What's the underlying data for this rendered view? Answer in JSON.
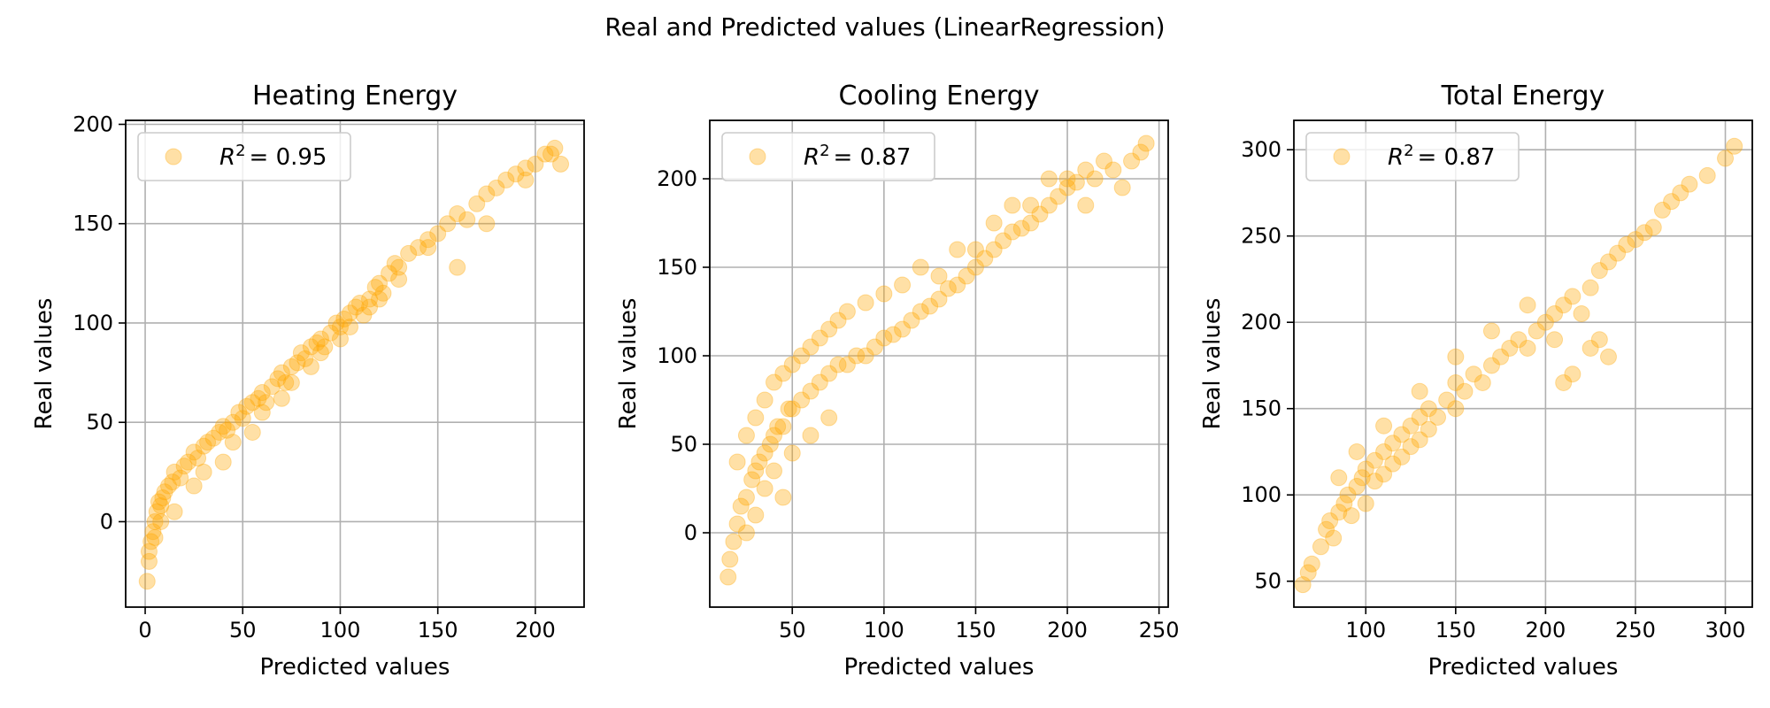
{
  "figure": {
    "suptitle": "Real and Predicted values (LinearRegression)"
  },
  "colors": {
    "point": "#ffa500",
    "grid": "#b0b0b0",
    "axis": "#000000"
  },
  "chart_data": [
    {
      "type": "scatter",
      "title": "Heating Energy",
      "xlabel": "Predicted values",
      "ylabel": "Real values",
      "xlim": [
        -10,
        225
      ],
      "ylim": [
        -43,
        202
      ],
      "xticks": [
        0,
        50,
        100,
        150,
        200
      ],
      "yticks": [
        0,
        50,
        100,
        150,
        200
      ],
      "grid": true,
      "legend": {
        "placement": "top-left",
        "label_prefix": "R",
        "label_sup": "2",
        "label_rest": "=  0.95"
      },
      "series": [
        {
          "values_x": [
            1,
            2,
            3,
            4,
            5,
            6,
            7,
            8,
            9,
            10,
            12,
            14,
            15,
            18,
            20,
            22,
            25,
            27,
            30,
            32,
            35,
            38,
            40,
            42,
            45,
            48,
            50,
            52,
            55,
            58,
            60,
            62,
            65,
            68,
            70,
            72,
            75,
            78,
            80,
            82,
            85,
            88,
            90,
            92,
            95,
            98,
            100,
            102,
            105,
            108,
            110,
            112,
            115,
            118,
            120,
            122,
            125,
            128,
            130,
            135,
            140,
            145,
            150,
            155,
            160,
            165,
            170,
            175,
            180,
            185,
            190,
            195,
            200,
            205,
            210,
            213,
            15,
            25,
            40,
            55,
            70,
            85,
            100,
            115,
            130,
            145,
            30,
            45,
            60,
            75,
            90,
            105,
            120,
            2,
            5,
            8,
            160,
            175,
            195,
            208
          ],
          "values_y": [
            -30,
            -20,
            -10,
            -5,
            0,
            5,
            10,
            8,
            12,
            15,
            18,
            20,
            25,
            22,
            28,
            30,
            35,
            32,
            38,
            40,
            42,
            45,
            48,
            46,
            50,
            55,
            52,
            58,
            60,
            62,
            65,
            60,
            68,
            72,
            75,
            70,
            78,
            80,
            85,
            82,
            88,
            90,
            92,
            88,
            95,
            100,
            98,
            102,
            105,
            108,
            110,
            104,
            112,
            118,
            120,
            115,
            125,
            130,
            128,
            135,
            138,
            142,
            145,
            150,
            155,
            152,
            160,
            165,
            168,
            172,
            175,
            178,
            180,
            185,
            188,
            180,
            5,
            18,
            30,
            45,
            62,
            78,
            92,
            108,
            122,
            138,
            25,
            40,
            55,
            70,
            85,
            98,
            112,
            -15,
            -8,
            0,
            128,
            150,
            172,
            185
          ]
        }
      ]
    },
    {
      "type": "scatter",
      "title": "Cooling Energy",
      "xlabel": "Predicted values",
      "ylabel": "Real values",
      "xlim": [
        5,
        255
      ],
      "ylim": [
        -42,
        233
      ],
      "xticks": [
        50,
        100,
        150,
        200,
        250
      ],
      "yticks": [
        0,
        50,
        100,
        150,
        200
      ],
      "grid": true,
      "legend": {
        "placement": "top-left",
        "label_prefix": "R",
        "label_sup": "2",
        "label_rest": "=  0.87"
      },
      "series": [
        {
          "values_x": [
            15,
            16,
            18,
            20,
            20,
            22,
            25,
            25,
            28,
            30,
            30,
            32,
            35,
            35,
            38,
            40,
            40,
            42,
            45,
            45,
            48,
            50,
            50,
            55,
            55,
            60,
            60,
            65,
            65,
            70,
            70,
            75,
            75,
            80,
            80,
            85,
            90,
            90,
            95,
            100,
            100,
            105,
            110,
            110,
            115,
            120,
            125,
            130,
            130,
            135,
            140,
            145,
            150,
            150,
            155,
            160,
            165,
            170,
            175,
            180,
            180,
            185,
            190,
            195,
            200,
            200,
            205,
            210,
            215,
            220,
            225,
            230,
            235,
            240,
            243,
            25,
            30,
            35,
            40,
            45,
            50,
            60,
            70,
            120,
            140,
            160,
            170,
            190,
            210
          ],
          "values_y": [
            -25,
            -15,
            -5,
            5,
            40,
            15,
            20,
            55,
            30,
            35,
            65,
            40,
            45,
            75,
            50,
            55,
            85,
            60,
            60,
            90,
            70,
            70,
            95,
            75,
            100,
            80,
            105,
            85,
            110,
            90,
            115,
            95,
            120,
            95,
            125,
            100,
            100,
            130,
            105,
            110,
            135,
            112,
            115,
            140,
            120,
            125,
            128,
            132,
            145,
            138,
            140,
            145,
            150,
            160,
            155,
            160,
            165,
            170,
            172,
            175,
            185,
            180,
            185,
            190,
            195,
            200,
            198,
            205,
            200,
            210,
            205,
            195,
            210,
            215,
            220,
            0,
            10,
            25,
            35,
            20,
            45,
            55,
            65,
            150,
            160,
            175,
            185,
            200,
            185
          ]
        }
      ]
    },
    {
      "type": "scatter",
      "title": "Total Energy",
      "xlabel": "Predicted values",
      "ylabel": "Real values",
      "xlim": [
        60,
        315
      ],
      "ylim": [
        35,
        317
      ],
      "xticks": [
        100,
        150,
        200,
        250,
        300
      ],
      "yticks": [
        50,
        100,
        150,
        200,
        250,
        300
      ],
      "grid": true,
      "legend": {
        "placement": "top-left",
        "label_prefix": "R",
        "label_sup": "2",
        "label_rest": "=  0.87"
      },
      "series": [
        {
          "values_x": [
            65,
            68,
            70,
            75,
            78,
            80,
            82,
            85,
            88,
            90,
            92,
            95,
            98,
            100,
            100,
            105,
            105,
            110,
            110,
            115,
            115,
            120,
            120,
            125,
            125,
            130,
            130,
            135,
            135,
            140,
            145,
            150,
            150,
            155,
            160,
            165,
            170,
            175,
            180,
            185,
            190,
            195,
            200,
            205,
            205,
            210,
            210,
            215,
            220,
            225,
            230,
            230,
            235,
            240,
            245,
            250,
            255,
            260,
            265,
            270,
            275,
            280,
            290,
            300,
            305,
            85,
            95,
            110,
            130,
            150,
            170,
            190,
            215,
            225,
            235
          ],
          "values_y": [
            48,
            55,
            60,
            70,
            80,
            85,
            75,
            90,
            95,
            100,
            88,
            105,
            110,
            115,
            95,
            120,
            108,
            125,
            112,
            130,
            118,
            135,
            122,
            140,
            128,
            145,
            132,
            150,
            138,
            145,
            155,
            150,
            165,
            160,
            170,
            165,
            175,
            180,
            185,
            190,
            185,
            195,
            200,
            190,
            205,
            210,
            165,
            215,
            205,
            220,
            190,
            230,
            235,
            240,
            245,
            248,
            252,
            255,
            265,
            270,
            275,
            280,
            285,
            295,
            302,
            110,
            125,
            140,
            160,
            180,
            195,
            210,
            170,
            185,
            180
          ]
        }
      ]
    }
  ]
}
